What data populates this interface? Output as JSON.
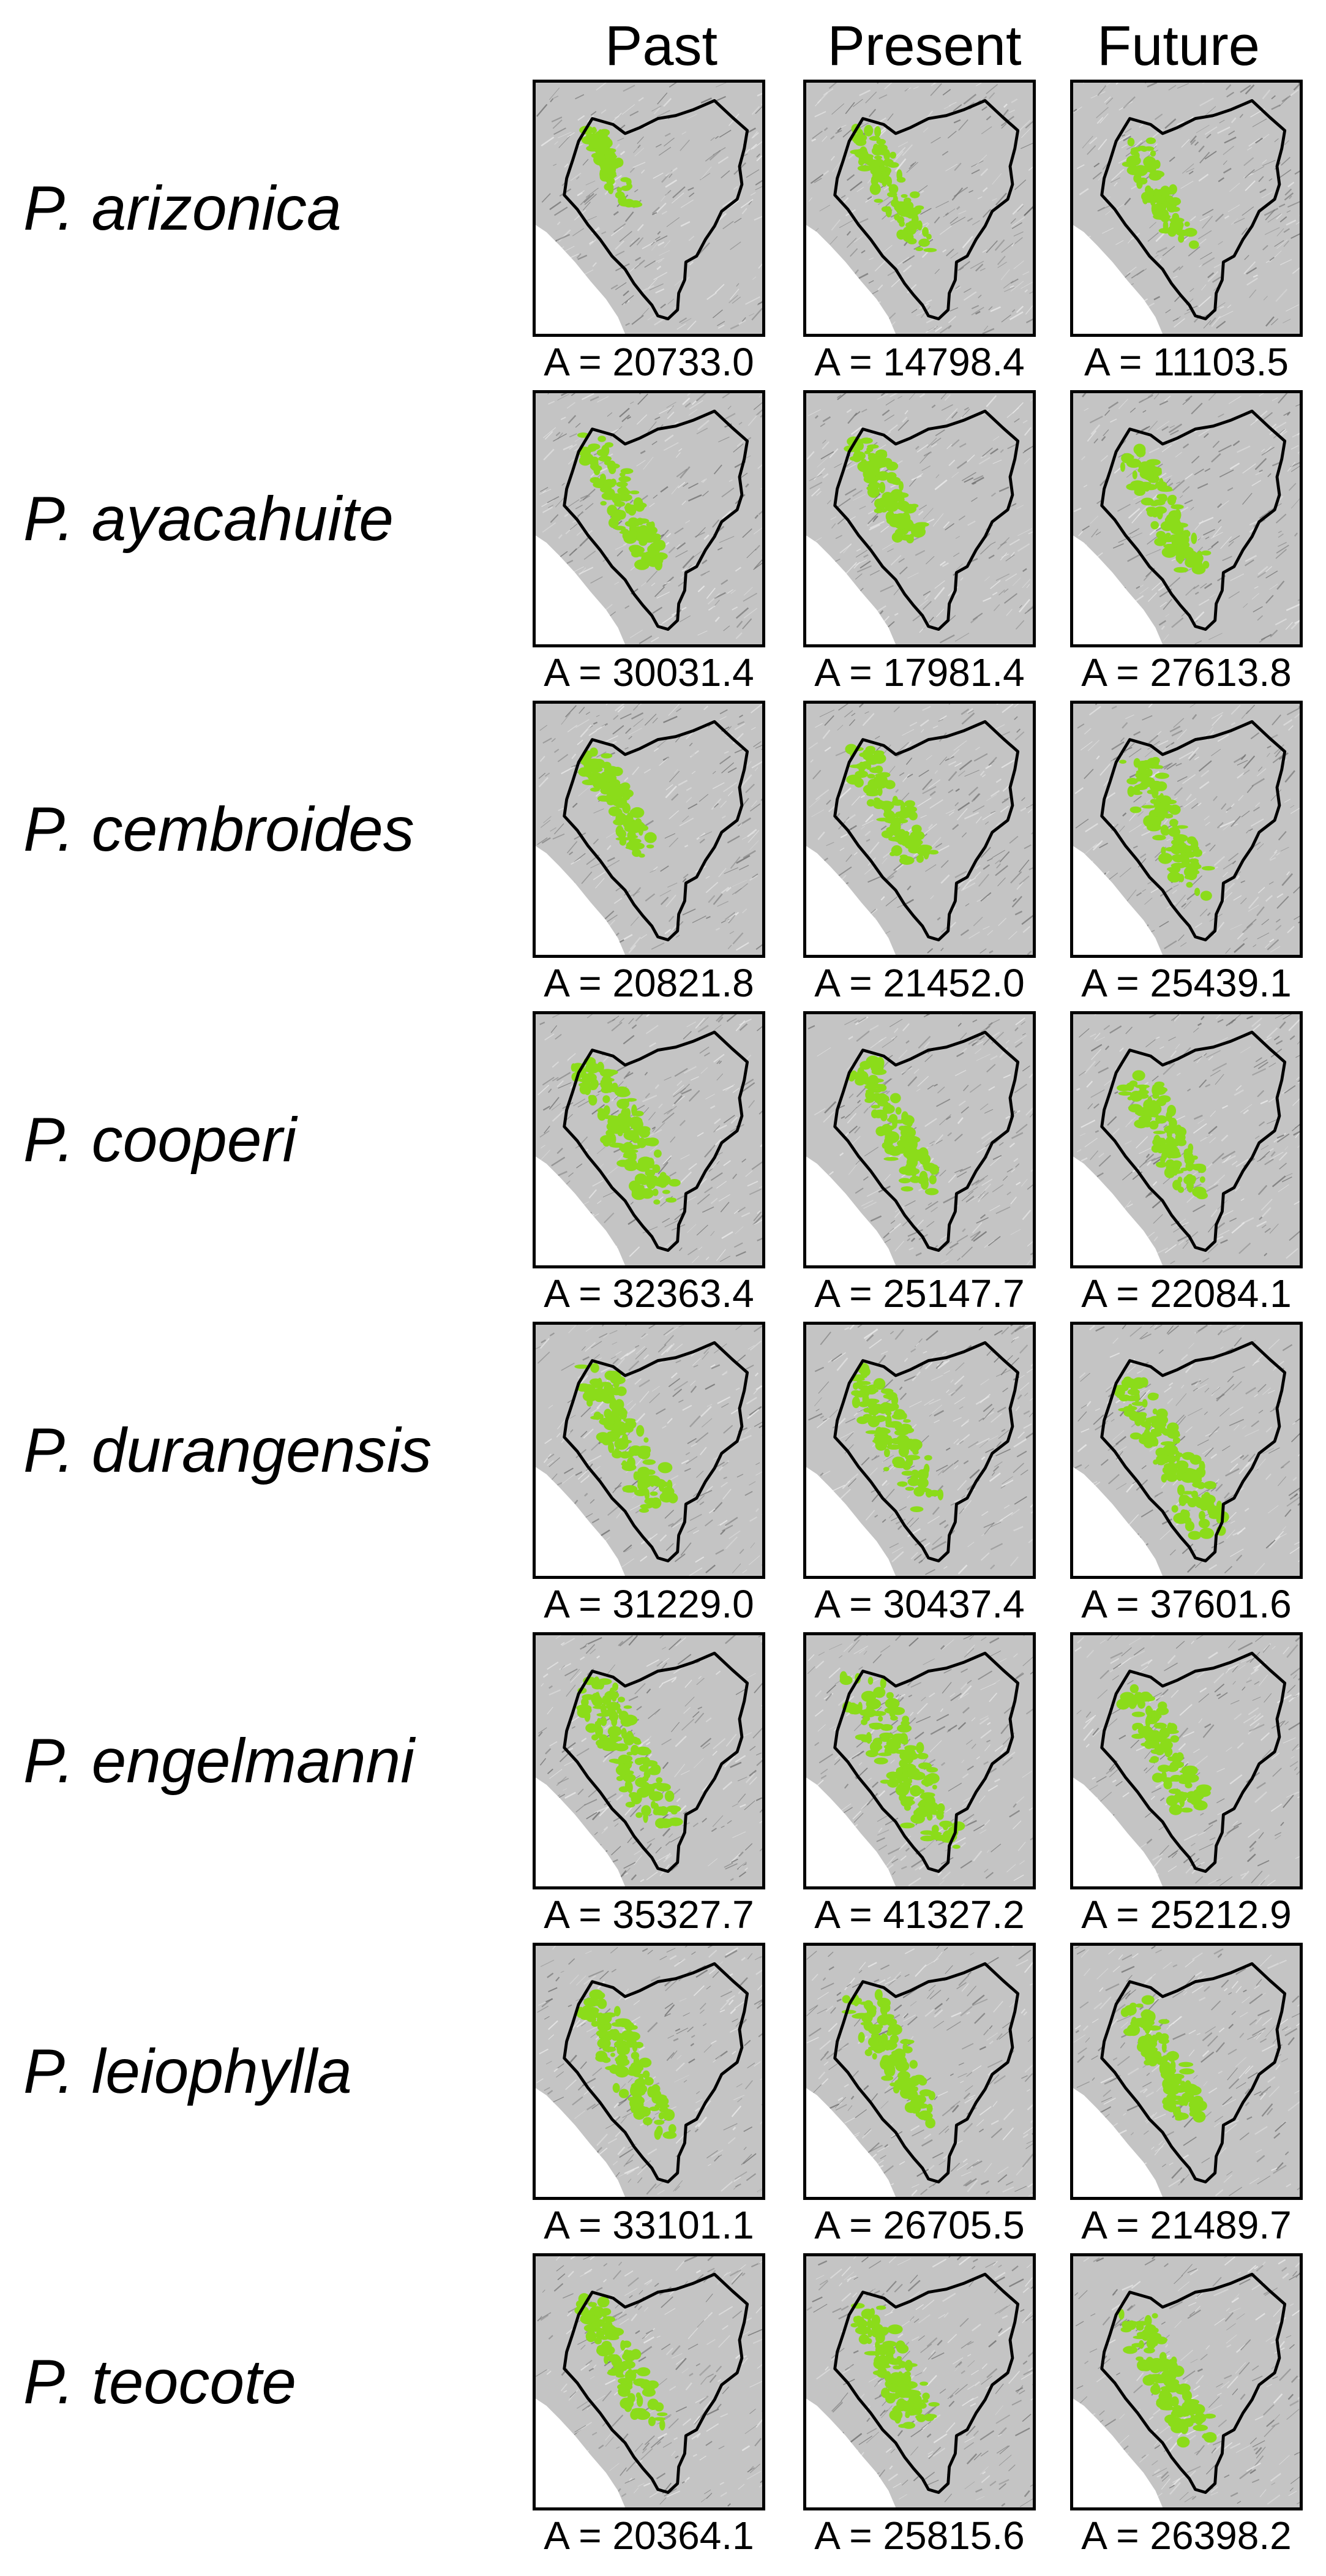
{
  "columns": [
    "Past",
    "Present",
    "Future"
  ],
  "area_prefix": "A = ",
  "colors": {
    "suitable_habitat": "#8bdc1a",
    "terrain": "#c4c4c4",
    "ocean": "#ffffff",
    "border": "#000000"
  },
  "species": [
    {
      "name": "P. arizonica",
      "areas": [
        "20733.0",
        "14798.4",
        "11103.5"
      ],
      "extent": [
        0.22,
        0.48,
        0.36
      ]
    },
    {
      "name": "P. ayacahuite",
      "areas": [
        "30031.4",
        "17981.4",
        "27613.8"
      ],
      "extent": [
        0.55,
        0.4,
        0.5
      ]
    },
    {
      "name": "P. cembroides",
      "areas": [
        "20821.8",
        "21452.0",
        "25439.1"
      ],
      "extent": [
        0.42,
        0.5,
        0.55
      ]
    },
    {
      "name": "P. cooperi",
      "areas": [
        "32363.4",
        "25147.7",
        "22084.1"
      ],
      "extent": [
        0.65,
        0.55,
        0.5
      ]
    },
    {
      "name": "P. durangensis",
      "areas": [
        "31229.0",
        "30437.4",
        "37601.6"
      ],
      "extent": [
        0.62,
        0.6,
        0.7
      ]
    },
    {
      "name": "P. engelmanni",
      "areas": [
        "35327.7",
        "41327.2",
        "25212.9"
      ],
      "extent": [
        0.66,
        0.78,
        0.52
      ]
    },
    {
      "name": "P. leiophylla",
      "areas": [
        "33101.1",
        "26705.5",
        "21489.7"
      ],
      "extent": [
        0.65,
        0.57,
        0.5
      ]
    },
    {
      "name": "P. teocote",
      "areas": [
        "20364.1",
        "25815.6",
        "26398.2"
      ],
      "extent": [
        0.5,
        0.56,
        0.56
      ]
    }
  ]
}
